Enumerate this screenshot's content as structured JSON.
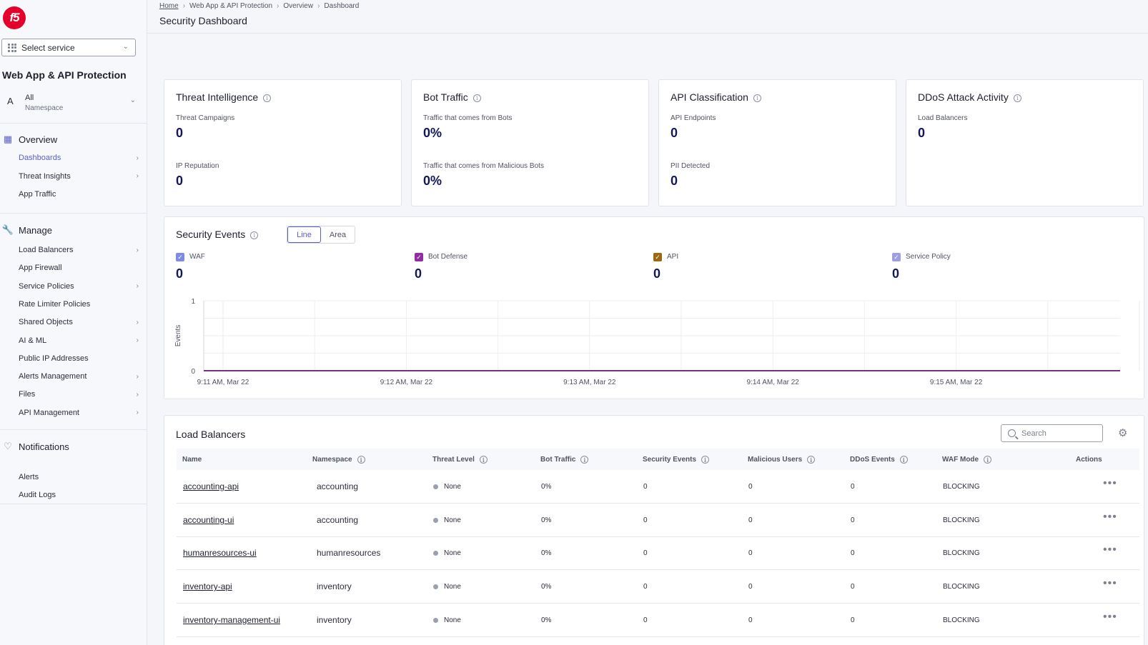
{
  "sidebar": {
    "logo_text": "f5",
    "service_select": "Select service",
    "app_title": "Web App & API Protection",
    "namespace": {
      "letter": "A",
      "value": "All",
      "label": "Namespace"
    },
    "sections": {
      "overview": {
        "label": "Overview",
        "items": [
          {
            "label": "Dashboards",
            "active": true,
            "arrow": true
          },
          {
            "label": "Threat Insights",
            "arrow": true
          },
          {
            "label": "App Traffic",
            "arrow": false
          }
        ]
      },
      "manage": {
        "label": "Manage",
        "items": [
          {
            "label": "Load Balancers",
            "arrow": true
          },
          {
            "label": "App Firewall",
            "arrow": false
          },
          {
            "label": "Service Policies",
            "arrow": true
          },
          {
            "label": "Rate Limiter Policies",
            "arrow": false
          },
          {
            "label": "Shared Objects",
            "arrow": true
          },
          {
            "label": "AI & ML",
            "arrow": true
          },
          {
            "label": "Public IP Addresses",
            "arrow": false
          },
          {
            "label": "Alerts Management",
            "arrow": true
          },
          {
            "label": "Files",
            "arrow": true
          },
          {
            "label": "API Management",
            "arrow": true
          }
        ]
      },
      "notifications": {
        "label": "Notifications",
        "items": [
          {
            "label": "Alerts",
            "arrow": false
          },
          {
            "label": "Audit Logs",
            "arrow": false
          }
        ]
      }
    }
  },
  "header": {
    "breadcrumb": [
      "Home",
      "Web App & API Protection",
      "Overview",
      "Dashboard"
    ],
    "title": "Security Dashboard"
  },
  "cards": [
    {
      "title": "Threat Intelligence",
      "metrics": [
        {
          "label": "Threat Campaigns",
          "value": "0"
        },
        {
          "label": "IP Reputation",
          "value": "0"
        }
      ]
    },
    {
      "title": "Bot Traffic",
      "metrics": [
        {
          "label": "Traffic that comes from Bots",
          "value": "0%"
        },
        {
          "label": "Traffic that comes from Malicious Bots",
          "value": "0%"
        }
      ]
    },
    {
      "title": "API Classification",
      "metrics": [
        {
          "label": "API Endpoints",
          "value": "0"
        },
        {
          "label": "PII Detected",
          "value": "0"
        }
      ]
    },
    {
      "title": "DDoS Attack Activity",
      "metrics": [
        {
          "label": "Load Balancers",
          "value": "0"
        }
      ]
    }
  ],
  "security_events": {
    "title": "Security Events",
    "toggle": {
      "line": "Line",
      "area": "Area",
      "selected": "line"
    },
    "legend": [
      {
        "name": "WAF",
        "value": "0",
        "color": "#7e8be0"
      },
      {
        "name": "Bot Defense",
        "value": "0",
        "color": "#8f2f9e"
      },
      {
        "name": "API",
        "value": "0",
        "color": "#9a6a10"
      },
      {
        "name": "Service Policy",
        "value": "0",
        "color": "#9d9fe0"
      }
    ]
  },
  "chart_data": {
    "type": "line",
    "ylabel": "Events",
    "ylim": [
      0,
      1
    ],
    "yticks": [
      "0",
      "1"
    ],
    "xtick_labels": [
      "9:11 AM, Mar 22",
      "9:12 AM, Mar 22",
      "9:13 AM, Mar 22",
      "9:14 AM, Mar 22",
      "9:15 AM, Mar 22"
    ],
    "x": [
      "9:11 AM",
      "9:11:30 AM",
      "9:12 AM",
      "9:12:30 AM",
      "9:13 AM",
      "9:13:30 AM",
      "9:14 AM",
      "9:14:30 AM",
      "9:15 AM",
      "9:15:30 AM",
      "9:16 AM"
    ],
    "series": [
      {
        "name": "WAF",
        "values": [
          0,
          0,
          0,
          0,
          0,
          0,
          0,
          0,
          0,
          0,
          0
        ]
      },
      {
        "name": "Bot Defense",
        "values": [
          0,
          0,
          0,
          0,
          0,
          0,
          0,
          0,
          0,
          0,
          0
        ]
      },
      {
        "name": "API",
        "values": [
          0,
          0,
          0,
          0,
          0,
          0,
          0,
          0,
          0,
          0,
          0
        ]
      },
      {
        "name": "Service Policy",
        "values": [
          0,
          0,
          0,
          0,
          0,
          0,
          0,
          0,
          0,
          0,
          0
        ]
      }
    ],
    "grid": true,
    "series_color": "#6a2e78"
  },
  "load_balancers": {
    "title": "Load Balancers",
    "search_placeholder": "Search",
    "columns": [
      "Name",
      "Namespace",
      "Threat Level",
      "Bot Traffic",
      "Security Events",
      "Malicious Users",
      "DDoS Events",
      "WAF Mode",
      "Actions"
    ],
    "rows": [
      {
        "name": "accounting-api",
        "namespace": "accounting",
        "threat": "None",
        "bot": "0%",
        "events": "0",
        "malicious": "0",
        "ddos": "0",
        "waf": "BLOCKING"
      },
      {
        "name": "accounting-ui",
        "namespace": "accounting",
        "threat": "None",
        "bot": "0%",
        "events": "0",
        "malicious": "0",
        "ddos": "0",
        "waf": "BLOCKING"
      },
      {
        "name": "humanresources-ui",
        "namespace": "humanresources",
        "threat": "None",
        "bot": "0%",
        "events": "0",
        "malicious": "0",
        "ddos": "0",
        "waf": "BLOCKING"
      },
      {
        "name": "inventory-api",
        "namespace": "inventory",
        "threat": "None",
        "bot": "0%",
        "events": "0",
        "malicious": "0",
        "ddos": "0",
        "waf": "BLOCKING"
      },
      {
        "name": "inventory-management-ui",
        "namespace": "inventory",
        "threat": "None",
        "bot": "0%",
        "events": "0",
        "malicious": "0",
        "ddos": "0",
        "waf": "BLOCKING"
      }
    ]
  }
}
